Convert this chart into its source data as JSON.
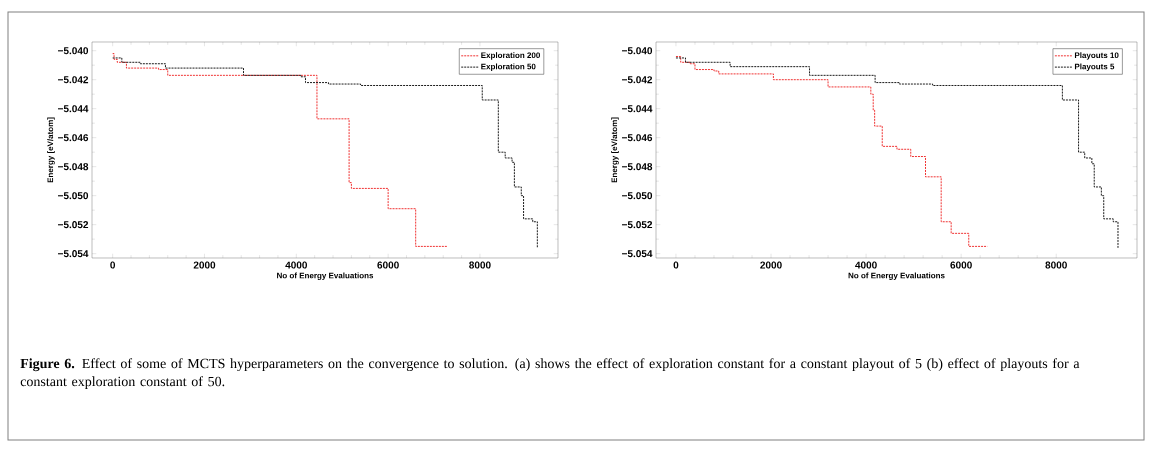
{
  "chart_data": [
    {
      "type": "step",
      "xlabel": "No of Energy Evaluations",
      "ylabel": "Energy [eV/atom]",
      "xlim": [
        -450,
        9700
      ],
      "ylim": [
        -5.0543,
        -5.0394
      ],
      "xticks": [
        0,
        2000,
        4000,
        6000,
        8000
      ],
      "yticks": [
        {
          "value": -5.04,
          "label": "−5.040"
        },
        {
          "value": -5.042,
          "label": "−5.042"
        },
        {
          "value": -5.044,
          "label": "−5.044"
        },
        {
          "value": -5.046,
          "label": "−5.046"
        },
        {
          "value": -5.048,
          "label": "−5.048"
        },
        {
          "value": -5.05,
          "label": "−5.050"
        },
        {
          "value": -5.052,
          "label": "−5.052"
        },
        {
          "value": -5.054,
          "label": "−5.054"
        }
      ],
      "legend": "top right",
      "line_style": "dashed",
      "series": [
        {
          "name": "Exploration 200",
          "color": "#ee1c1c",
          "x": [
            0,
            30,
            100,
            300,
            1000,
            1200,
            4450,
            5150,
            5200,
            6000,
            6600,
            7300
          ],
          "values": [
            -5.0402,
            -5.0406,
            -5.0408,
            -5.0412,
            -5.0413,
            -5.0417,
            -5.0447,
            -5.0491,
            -5.0495,
            -5.0509,
            -5.0535,
            -5.0535
          ]
        },
        {
          "name": "Exploration 50",
          "color": "#000000",
          "x": [
            0,
            200,
            600,
            1150,
            2850,
            4100,
            4200,
            4700,
            5400,
            8050,
            8400,
            8550,
            8700,
            8750,
            8900,
            8950,
            9150,
            9250
          ],
          "values": [
            -5.0405,
            -5.0408,
            -5.0409,
            -5.0412,
            -5.0417,
            -5.0418,
            -5.0422,
            -5.0423,
            -5.0424,
            -5.0434,
            -5.047,
            -5.0474,
            -5.0477,
            -5.0494,
            -5.05,
            -5.0516,
            -5.0518,
            -5.0536
          ]
        }
      ],
      "annotations": [
        "**Figure 6.** Effect of some of MCTS hyperparameters on the convergence to solution. (a) shows the effect of exploration constant for a constant playout of 5 (b) effect of playouts for a constant exploration constant of 50."
      ]
    },
    {
      "type": "step",
      "xlabel": "No of Energy Evaluations",
      "ylabel": "Energy [eV/atom]",
      "xlim": [
        -420,
        9700
      ],
      "ylim": [
        -5.0543,
        -5.0394
      ],
      "xticks": [
        0,
        2000,
        4000,
        6000,
        8000
      ],
      "yticks": [
        {
          "value": -5.04,
          "label": "−5.040"
        },
        {
          "value": -5.042,
          "label": "−5.042"
        },
        {
          "value": -5.044,
          "label": "−5.044"
        },
        {
          "value": -5.046,
          "label": "−5.046"
        },
        {
          "value": -5.048,
          "label": "−5.048"
        },
        {
          "value": -5.05,
          "label": "−5.050"
        },
        {
          "value": -5.052,
          "label": "−5.052"
        },
        {
          "value": -5.054,
          "label": "−5.054"
        }
      ],
      "legend": "top right",
      "line_style": "dashed",
      "series": [
        {
          "name": "Playouts 10",
          "color": "#ee1c1c",
          "x": [
            0,
            100,
            300,
            400,
            800,
            900,
            2050,
            3200,
            4100,
            4150,
            4180,
            4340,
            4650,
            4940,
            5250,
            5580,
            5790,
            6160,
            6550
          ],
          "values": [
            -5.0404,
            -5.0408,
            -5.0409,
            -5.0413,
            -5.0414,
            -5.0416,
            -5.042,
            -5.0425,
            -5.043,
            -5.0441,
            -5.0452,
            -5.0466,
            -5.0468,
            -5.0473,
            -5.0487,
            -5.0518,
            -5.0526,
            -5.0535,
            -5.0535
          ]
        },
        {
          "name": "Playouts 5",
          "color": "#000000",
          "x": [
            0,
            200,
            1140,
            2810,
            4190,
            4700,
            5400,
            8130,
            8470,
            8600,
            8750,
            8800,
            8950,
            9000,
            9200,
            9300
          ],
          "values": [
            -5.0405,
            -5.0408,
            -5.0411,
            -5.0417,
            -5.0422,
            -5.0423,
            -5.0424,
            -5.0434,
            -5.047,
            -5.0474,
            -5.0478,
            -5.0494,
            -5.05,
            -5.0516,
            -5.0518,
            -5.0536
          ]
        }
      ]
    }
  ]
}
